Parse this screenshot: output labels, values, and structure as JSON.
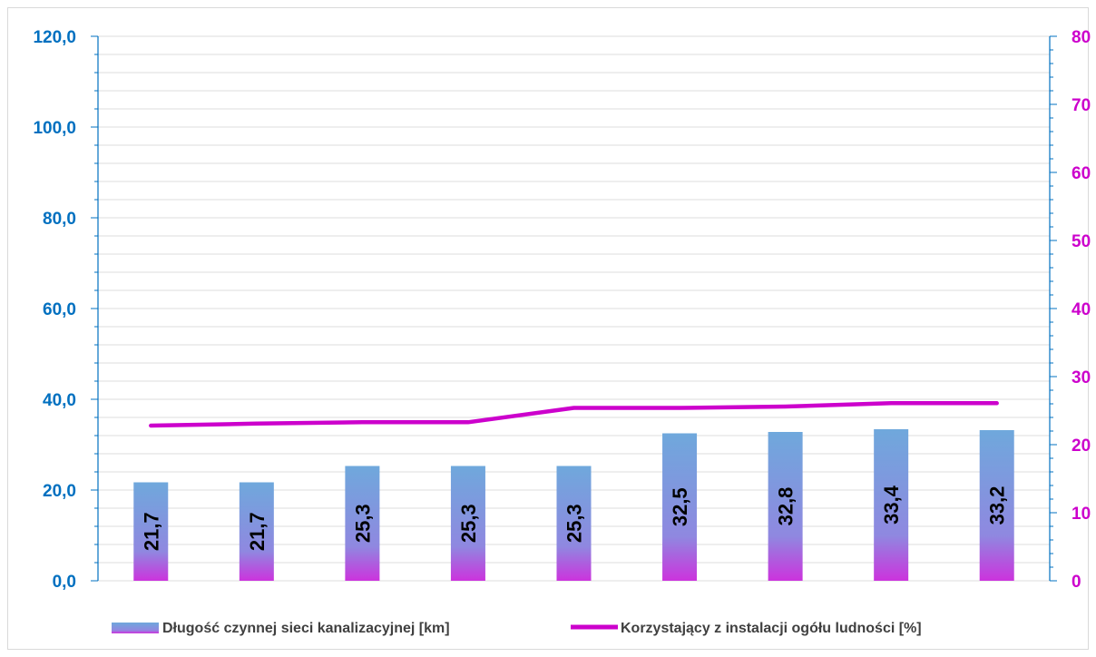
{
  "chart_data": {
    "type": "bar",
    "categories": [
      "",
      "",
      "",
      "",
      "",
      "",
      "",
      "",
      ""
    ],
    "series": [
      {
        "name": "Długość czynnej sieci kanalizacyjnej [km]",
        "type": "bar",
        "axis": "left",
        "values": [
          21.7,
          21.7,
          25.3,
          25.3,
          25.3,
          32.5,
          32.8,
          33.4,
          33.2
        ],
        "labels": [
          "21,7",
          "21,7",
          "25,3",
          "25,3",
          "25,3",
          "32,5",
          "32,8",
          "33,4",
          "33,2"
        ]
      },
      {
        "name": "Korzystający z instalacji ogółu ludności [%]",
        "type": "line",
        "axis": "right",
        "values": [
          22.8,
          23.1,
          23.3,
          23.3,
          25.4,
          25.4,
          25.6,
          26.1,
          26.1
        ]
      }
    ],
    "ylim": [
      0,
      120
    ],
    "ylim_right": [
      0,
      80
    ],
    "y_ticks": [
      "0,0",
      "20,0",
      "40,0",
      "60,0",
      "80,0",
      "100,0",
      "120,0"
    ],
    "y_right_ticks": [
      "0",
      "10",
      "20",
      "30",
      "40",
      "50",
      "60",
      "70",
      "80"
    ],
    "grid": true,
    "legend_position": "bottom",
    "colors": {
      "bar_top": "#6fa8dc",
      "bar_bottom": "#cc33dd",
      "line": "#cc00cc",
      "left_axis": "#0070c0",
      "right_axis": "#cc00cc",
      "grid": "#dcdcdc"
    }
  }
}
